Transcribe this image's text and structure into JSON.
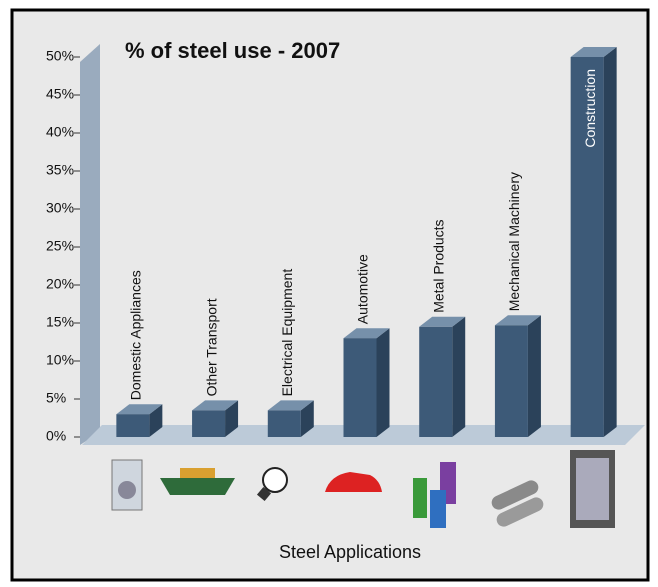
{
  "chart_data": {
    "type": "bar3d",
    "title": "% of steel use - 2007",
    "x_label": "Steel Applications",
    "categories": [
      "Domestic Appliances",
      "Other Transport",
      "Electrical Equipment",
      "Automotive",
      "Metal Products",
      "Mechanical Machinery",
      "Construction"
    ],
    "values": [
      3,
      3.5,
      3.5,
      13,
      14.5,
      14.7,
      50
    ],
    "color": "#3d5a78",
    "ylim": [
      0,
      50
    ],
    "yticks": [
      {
        "value": 0,
        "label": "0%"
      },
      {
        "value": 5,
        "label": "5%"
      },
      {
        "value": 10,
        "label": "10%"
      },
      {
        "value": 15,
        "label": "15%"
      },
      {
        "value": 20,
        "label": "20%"
      },
      {
        "value": 25,
        "label": "25%"
      },
      {
        "value": 30,
        "label": "30%"
      },
      {
        "value": 35,
        "label": "35%"
      },
      {
        "value": 40,
        "label": "40%"
      },
      {
        "value": 45,
        "label": "45%"
      },
      {
        "value": 50,
        "label": "50%"
      }
    ]
  }
}
